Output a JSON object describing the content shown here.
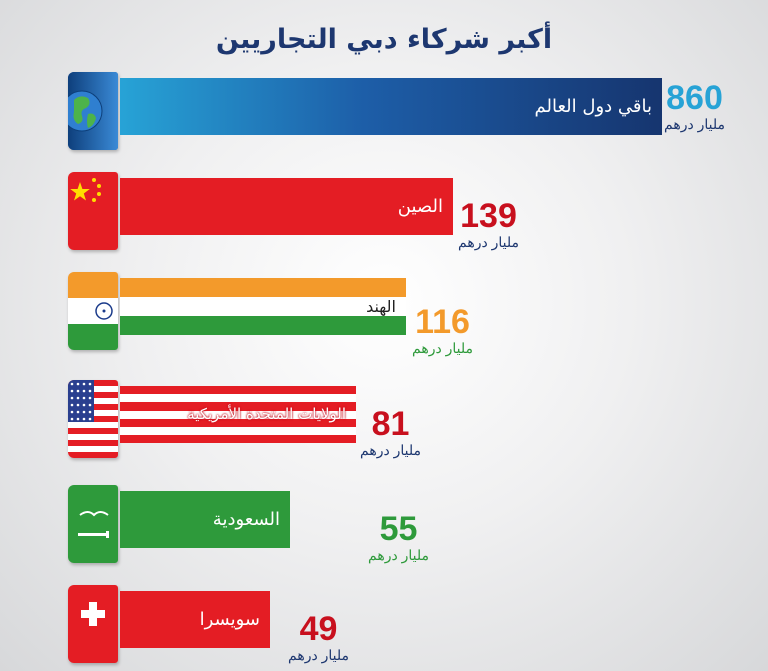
{
  "chart_data": {
    "type": "bar",
    "title": "أكبر شركاء دبي التجاريين",
    "unit": "مليار درهم",
    "categories": [
      "باقي دول العالم",
      "الصين",
      "الهند",
      "الولايات المتحدة الأمريكية",
      "السعودية",
      "سويسرا"
    ],
    "values": [
      860,
      139,
      116,
      81,
      55,
      49
    ],
    "flags": [
      "globe-icon",
      "china-flag-icon",
      "india-flag-icon",
      "usa-flag-icon",
      "saudi-flag-icon",
      "switzerland-flag-icon"
    ],
    "colors": [
      "#16468a",
      "#e41d24",
      "#f39a2b",
      "#e41d24",
      "#2e9a3b",
      "#e41d24"
    ],
    "number_colors": [
      "#27a3d6",
      "#c8101e",
      "#f39a2b",
      "#c8101e",
      "#2e9a3b",
      "#c8101e"
    ],
    "unit_colors": [
      "#1d3770",
      "#1d3770",
      "#2e9a3b",
      "#1d3770",
      "#2e9a3b",
      "#1d3770"
    ]
  }
}
